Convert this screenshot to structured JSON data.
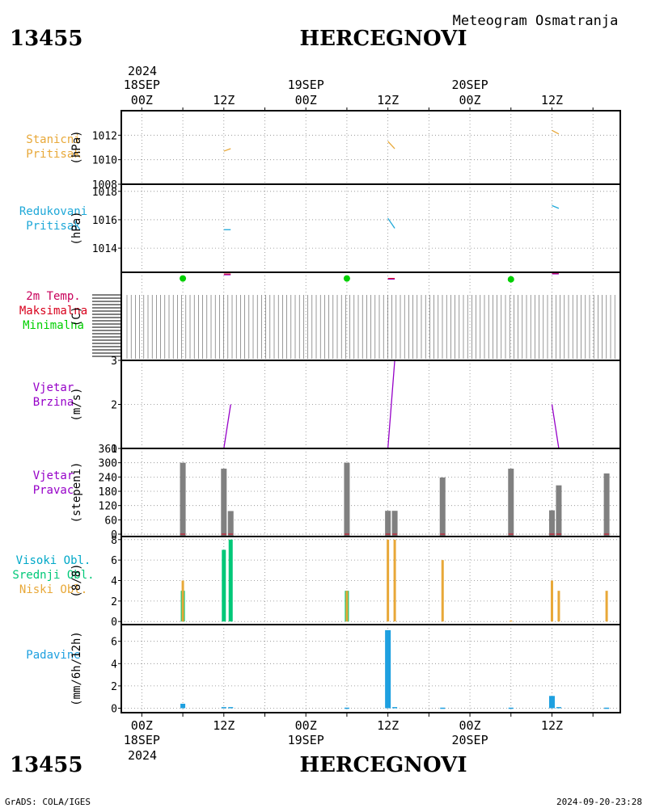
{
  "header": {
    "station_id": "13455",
    "station_name": "HERCEGNOVI",
    "subtitle": "Meteogram Osmatranja"
  },
  "footer": {
    "station_id": "13455",
    "station_name": "HERCEGNOVI",
    "credit": "GrADS: COLA/IGES",
    "timestamp": "2024-09-20-23:28"
  },
  "time_axis": {
    "year": "2024",
    "ticks": [
      {
        "hour": 0,
        "label": "00Z",
        "date": "18SEP"
      },
      {
        "hour": 12,
        "label": "12Z",
        "date": ""
      },
      {
        "hour": 24,
        "label": "00Z",
        "date": "19SEP"
      },
      {
        "hour": 36,
        "label": "12Z",
        "date": ""
      },
      {
        "hour": 48,
        "label": "00Z",
        "date": "20SEP"
      },
      {
        "hour": 60,
        "label": "12Z",
        "date": ""
      }
    ],
    "range_hours": [
      -3,
      70
    ]
  },
  "colors": {
    "station_pressure": "#e8a838",
    "reduced_pressure": "#1ea8d8",
    "temp_label": "#c8005a",
    "tmax": "#d8001c",
    "tmin": "#00d000",
    "wind": "#9600c8",
    "wind_dir_bar": "#808080",
    "cloud_high": "#00a8c8",
    "cloud_mid": "#00c878",
    "cloud_low": "#e8a838",
    "precip": "#1ea0e0",
    "gray_axis": "#000000"
  },
  "chart_data": [
    {
      "id": "station_pressure",
      "type": "line",
      "labels": [
        "Stanicni",
        "Pritisak"
      ],
      "ylabel": "(hPa)",
      "ylim": [
        1008,
        1014
      ],
      "yticks": [
        1008,
        1010,
        1012
      ],
      "segments": [
        {
          "x": [
            12,
            13
          ],
          "y": [
            1010.7,
            1010.9
          ]
        },
        {
          "x": [
            36,
            37
          ],
          "y": [
            1011.5,
            1010.9
          ]
        },
        {
          "x": [
            60,
            61
          ],
          "y": [
            1012.4,
            1012.1
          ]
        }
      ]
    },
    {
      "id": "reduced_pressure",
      "type": "line",
      "labels": [
        "Redukovani",
        "Pritisak"
      ],
      "ylabel": "(hPa)",
      "ylim": [
        1012.3,
        1018.5
      ],
      "yticks": [
        1014,
        1016,
        1018
      ],
      "segments": [
        {
          "x": [
            12,
            13
          ],
          "y": [
            1015.3,
            1015.3
          ]
        },
        {
          "x": [
            36,
            37
          ],
          "y": [
            1016.1,
            1015.4
          ]
        },
        {
          "x": [
            60,
            61
          ],
          "y": [
            1017.0,
            1016.8
          ]
        }
      ]
    },
    {
      "id": "temperature",
      "type": "scatter",
      "labels": [
        "2m Temp.",
        "Maksimalna",
        "Minimalna"
      ],
      "ylabel": "(C)",
      "tmin_points": [
        {
          "x": 6,
          "y": 0.93
        },
        {
          "x": 30,
          "y": 0.93
        },
        {
          "x": 54,
          "y": 0.92
        }
      ],
      "tmax_segments": [
        {
          "x": [
            12,
            13
          ],
          "y": [
            0.98,
            0.98
          ]
        },
        {
          "x": [
            36,
            37
          ],
          "y": [
            0.93,
            0.93
          ]
        },
        {
          "x": [
            60,
            61
          ],
          "y": [
            0.99,
            0.99
          ]
        }
      ]
    },
    {
      "id": "wind_speed",
      "type": "line",
      "labels": [
        "Vjetar",
        "Brzina"
      ],
      "ylabel": "(m/s)",
      "ylim": [
        1,
        3
      ],
      "yticks": [
        1,
        2,
        3
      ],
      "segments": [
        {
          "x": [
            12,
            13
          ],
          "y": [
            1,
            2
          ]
        },
        {
          "x": [
            36,
            37
          ],
          "y": [
            1,
            3
          ]
        },
        {
          "x": [
            60,
            61
          ],
          "y": [
            2,
            1
          ]
        }
      ]
    },
    {
      "id": "wind_direction",
      "type": "bar",
      "labels": [
        "Vjetar",
        "Pravac"
      ],
      "ylabel": "(stepeni)",
      "ylim": [
        -10,
        360
      ],
      "yticks": [
        0,
        60,
        120,
        180,
        240,
        300,
        360
      ],
      "bars": [
        {
          "x": 6,
          "y": 300
        },
        {
          "x": 12,
          "y": 275
        },
        {
          "x": 13,
          "y": 97
        },
        {
          "x": 30,
          "y": 300
        },
        {
          "x": 36,
          "y": 98
        },
        {
          "x": 37,
          "y": 98
        },
        {
          "x": 44,
          "y": 238
        },
        {
          "x": 54,
          "y": 275
        },
        {
          "x": 60,
          "y": 100
        },
        {
          "x": 61,
          "y": 205
        },
        {
          "x": 68,
          "y": 255
        }
      ]
    },
    {
      "id": "clouds",
      "type": "bar",
      "labels": [
        "Visoki Obl.",
        "Srednji Obl.",
        "Niski Obl."
      ],
      "ylabel": "(8/8)",
      "ylim": [
        -0.3,
        8.3
      ],
      "yticks": [
        0,
        2,
        4,
        6,
        8
      ],
      "low": [
        {
          "x": 6,
          "y": 4
        },
        {
          "x": 30,
          "y": 3
        },
        {
          "x": 36,
          "y": 8
        },
        {
          "x": 37,
          "y": 8
        },
        {
          "x": 44,
          "y": 6
        },
        {
          "x": 54,
          "y": 0.1
        },
        {
          "x": 60,
          "y": 4
        },
        {
          "x": 61,
          "y": 3
        },
        {
          "x": 68,
          "y": 3
        }
      ],
      "mid": [
        {
          "x": 6,
          "y": 3
        },
        {
          "x": 12,
          "y": 7
        },
        {
          "x": 13,
          "y": 8
        },
        {
          "x": 30,
          "y": 3
        }
      ]
    },
    {
      "id": "precipitation",
      "type": "bar",
      "labels": [
        "Padavine"
      ],
      "ylabel": "(mm/6h/12h)",
      "ylim": [
        -0.4,
        7.5
      ],
      "yticks": [
        0,
        2,
        4,
        6
      ],
      "bars": [
        {
          "x": 6,
          "y": 0.4
        },
        {
          "x": 12,
          "y": 0.1
        },
        {
          "x": 13,
          "y": 0.1
        },
        {
          "x": 30,
          "y": 0.05
        },
        {
          "x": 36,
          "y": 7.0
        },
        {
          "x": 37,
          "y": 0.1
        },
        {
          "x": 44,
          "y": 0.05
        },
        {
          "x": 54,
          "y": 0.05
        },
        {
          "x": 60,
          "y": 1.1
        },
        {
          "x": 61,
          "y": 0.1
        },
        {
          "x": 68,
          "y": 0.05
        }
      ]
    }
  ]
}
